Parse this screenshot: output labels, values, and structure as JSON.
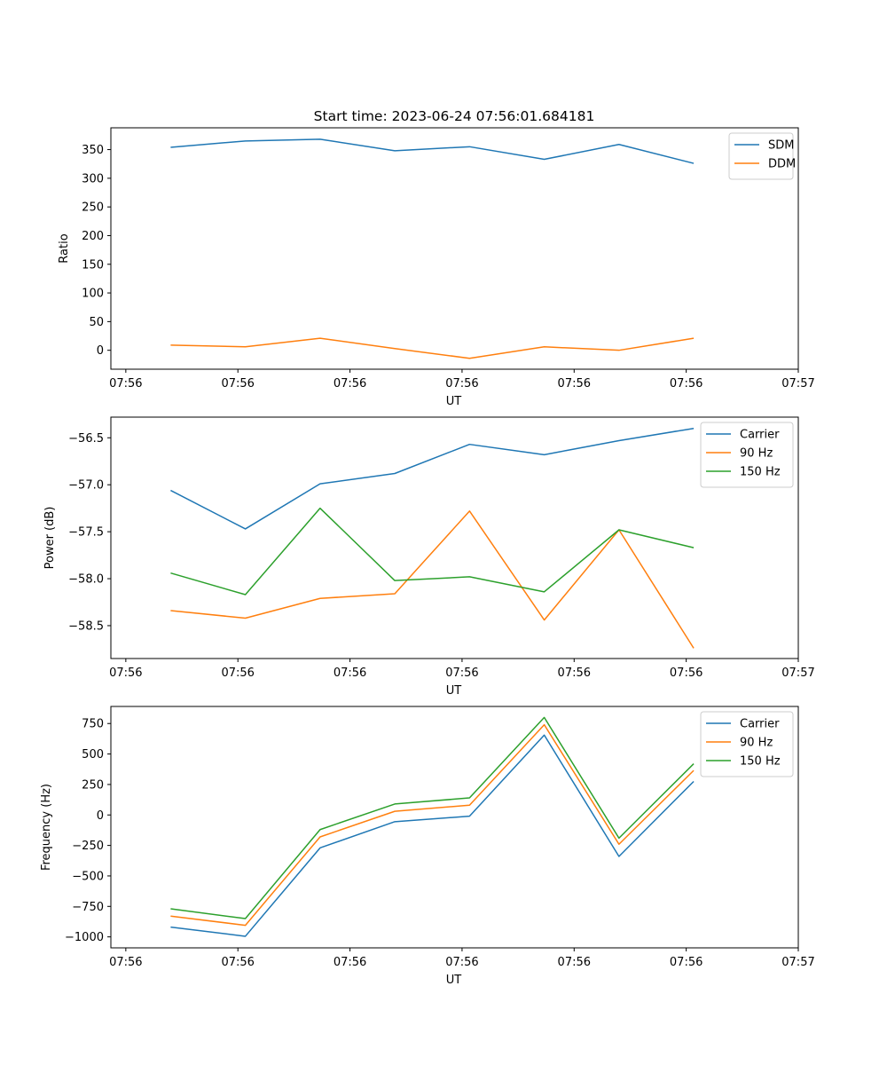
{
  "figure": {
    "title": "Start time: 2023-06-24 07:56:01.684181"
  },
  "chart_data": [
    {
      "type": "line",
      "xlabel": "UT",
      "ylabel": "Ratio",
      "x": [
        1,
        2,
        3,
        4,
        5,
        6,
        7,
        8
      ],
      "xticks": [
        "07:56",
        "07:56",
        "07:56",
        "07:56",
        "07:56",
        "07:56",
        "07:56"
      ],
      "xticks_end": "07:57",
      "xlim": [
        0.2,
        9.4
      ],
      "ylim": [
        -33,
        388
      ],
      "yticks": [
        0,
        50,
        100,
        150,
        200,
        250,
        300,
        350
      ],
      "ytick_labels": [
        "0",
        "50",
        "100",
        "150",
        "200",
        "250",
        "300",
        "350"
      ],
      "legend_position": "top-right",
      "series": [
        {
          "name": "SDM",
          "color": "#1f77b4",
          "values": [
            354,
            365,
            368,
            348,
            355,
            333,
            359,
            326
          ]
        },
        {
          "name": "DDM",
          "color": "#ff7f0e",
          "values": [
            9,
            6,
            21,
            3,
            -14,
            6,
            0,
            21
          ]
        }
      ]
    },
    {
      "type": "line",
      "xlabel": "UT",
      "ylabel": "Power (dB)",
      "x": [
        1,
        2,
        3,
        4,
        5,
        6,
        7,
        8
      ],
      "xticks": [
        "07:56",
        "07:56",
        "07:56",
        "07:56",
        "07:56",
        "07:56",
        "07:56"
      ],
      "xticks_end": "07:57",
      "xlim": [
        0.2,
        9.4
      ],
      "ylim": [
        -58.85,
        -56.28
      ],
      "yticks": [
        -58.5,
        -58.0,
        -57.5,
        -57.0,
        -56.5
      ],
      "ytick_labels": [
        "−58.5",
        "−58.0",
        "−57.5",
        "−57.0",
        "−56.5"
      ],
      "legend_position": "top-right",
      "series": [
        {
          "name": "Carrier",
          "color": "#1f77b4",
          "values": [
            -57.06,
            -57.47,
            -56.99,
            -56.88,
            -56.57,
            -56.68,
            -56.53,
            -56.4
          ]
        },
        {
          "name": "90 Hz",
          "color": "#ff7f0e",
          "values": [
            -58.34,
            -58.42,
            -58.21,
            -58.16,
            -57.28,
            -58.44,
            -57.48,
            -58.74
          ]
        },
        {
          "name": "150 Hz",
          "color": "#2ca02c",
          "values": [
            -57.94,
            -58.17,
            -57.25,
            -58.02,
            -57.98,
            -58.14,
            -57.48,
            -57.67
          ]
        }
      ]
    },
    {
      "type": "line",
      "xlabel": "UT",
      "ylabel": "Frequency (Hz)",
      "x": [
        1,
        2,
        3,
        4,
        5,
        6,
        7,
        8
      ],
      "xticks": [
        "07:56",
        "07:56",
        "07:56",
        "07:56",
        "07:56",
        "07:56",
        "07:56"
      ],
      "xticks_end": "07:57",
      "xlim": [
        0.2,
        9.4
      ],
      "ylim": [
        -1090,
        890
      ],
      "yticks": [
        -1000,
        -750,
        -500,
        -250,
        0,
        250,
        500,
        750
      ],
      "ytick_labels": [
        "−1000",
        "−750",
        "−500",
        "−250",
        "0",
        "250",
        "500",
        "750"
      ],
      "legend_position": "top-right",
      "series": [
        {
          "name": "Carrier",
          "color": "#1f77b4",
          "values": [
            -920,
            -995,
            -270,
            -55,
            -10,
            655,
            -340,
            275
          ]
        },
        {
          "name": "90 Hz",
          "color": "#ff7f0e",
          "values": [
            -830,
            -905,
            -180,
            30,
            80,
            740,
            -240,
            365
          ]
        },
        {
          "name": "150 Hz",
          "color": "#2ca02c",
          "values": [
            -770,
            -850,
            -120,
            90,
            140,
            800,
            -190,
            420
          ]
        }
      ]
    }
  ]
}
